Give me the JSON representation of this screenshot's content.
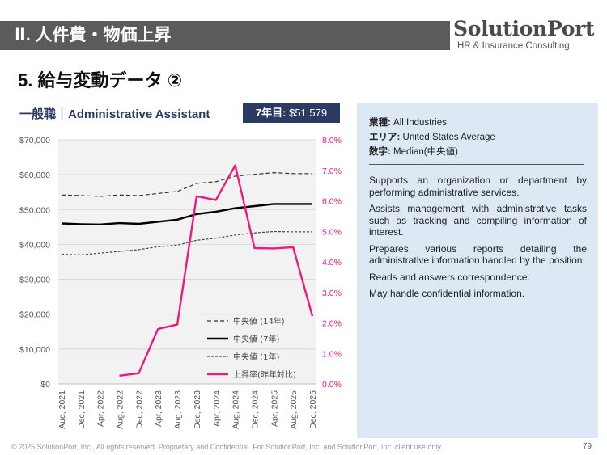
{
  "header": {
    "title": "Ⅱ. 人件費・物価上昇"
  },
  "brand": {
    "name": "SolutionPort",
    "sub": "HR & Insurance Consulting"
  },
  "section_title": "5. 給与変動データ ②",
  "chart_title": "一般職｜Administrative Assistant",
  "badge": {
    "label": "7年目:",
    "value": "$51,579"
  },
  "panel": {
    "industry_label": "業種:",
    "industry": "All Industries",
    "area_label": "エリア:",
    "area": "United States Average",
    "number_label": "数字:",
    "number": "Median(中央値)",
    "desc": [
      "Supports an organization or department by performing administrative services.",
      "Assists management with administrative tasks such as tracking and compiling information of interest.",
      "Prepares various reports detailing the administrative information handled by the position.",
      "Reads and answers correspondence.",
      "May handle confidential information."
    ]
  },
  "footer": "© 2025 SolutionPort, Inc., All rights reserved. Proprietary and Confidential. For SolutionPort, Inc. and SolutionPort, Inc. client use only.",
  "page_number": "79",
  "colors": {
    "navy": "#2b3a62",
    "pink": "#f0197d",
    "panel": "#dde8f5"
  },
  "chart_data": {
    "type": "line",
    "categories": [
      "Aug, 2021",
      "Dec, 2021",
      "Apr, 2022",
      "Aug, 2022",
      "Dec, 2022",
      "Apr, 2023",
      "Aug, 2023",
      "Dec, 2023",
      "Apr, 2024",
      "Aug, 2024",
      "Dec, 2024",
      "Apr, 2025",
      "Aug, 2025",
      "Dec, 2025"
    ],
    "y_left": {
      "min": 0,
      "max": 70000,
      "ticks": [
        "$0",
        "$10,000",
        "$20,000",
        "$30,000",
        "$40,000",
        "$50,000",
        "$60,000",
        "$70,000"
      ]
    },
    "y_right": {
      "min": 0,
      "max": 0.08,
      "ticks": [
        "0.0%",
        "1.0%",
        "2.0%",
        "3.0%",
        "4.0%",
        "5.0%",
        "6.0%",
        "7.0%",
        "8.0%"
      ]
    },
    "series": [
      {
        "name": "中央値 (14年)",
        "axis": "left",
        "style": "dashed",
        "values": [
          54200,
          54000,
          53800,
          54200,
          54000,
          54600,
          55200,
          57500,
          58000,
          59600,
          60100,
          60600,
          60300,
          60300
        ]
      },
      {
        "name": "中央値 (7年)",
        "axis": "left",
        "style": "solid",
        "values": [
          46000,
          45800,
          45700,
          46100,
          45900,
          46500,
          47100,
          48700,
          49400,
          50400,
          51000,
          51600,
          51600,
          51600
        ]
      },
      {
        "name": "中央値 (1年)",
        "axis": "left",
        "style": "dotted",
        "values": [
          37200,
          37000,
          37500,
          38000,
          38500,
          39300,
          39800,
          41200,
          41800,
          42700,
          43300,
          43700,
          43600,
          43600
        ]
      },
      {
        "name": "上昇率(昨年対比)",
        "axis": "right",
        "style": "pink",
        "values": [
          null,
          null,
          null,
          0.0027,
          0.0035,
          0.018,
          0.0195,
          0.0615,
          0.0603,
          0.0716,
          0.0445,
          0.0444,
          0.0448,
          0.0222
        ]
      }
    ]
  }
}
